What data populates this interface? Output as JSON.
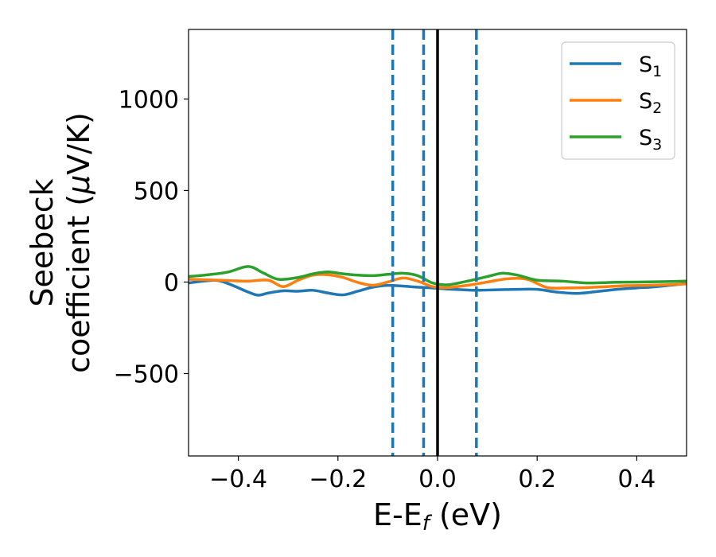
{
  "chart_data": {
    "type": "line",
    "xlabel": "E-E",
    "xlabel_sub": "f",
    "xlabel_unit": " (eV)",
    "ylabel_line1": "Seebeck",
    "ylabel_line2": "coefficient  (",
    "ylabel_mu": "μ",
    "ylabel_unit": "V/K)",
    "xlim": [
      -0.5,
      0.5
    ],
    "ylim": [
      -950,
      1380
    ],
    "xticks": [
      -0.4,
      -0.2,
      0.0,
      0.2,
      0.4
    ],
    "xtick_labels": [
      "−0.4",
      "−0.2",
      "0.0",
      "0.2",
      "0.4"
    ],
    "yticks": [
      -500,
      0,
      500,
      1000
    ],
    "ytick_labels": [
      "−500",
      "0",
      "500",
      "1000"
    ],
    "grid": false,
    "legend_position": "top-right",
    "vlines": [
      {
        "x": -0.09,
        "style": "dashed",
        "color": "#1f77b4"
      },
      {
        "x": -0.028,
        "style": "dashed",
        "color": "#1f77b4"
      },
      {
        "x": 0.0,
        "style": "solid",
        "color": "#000000"
      },
      {
        "x": 0.078,
        "style": "dashed",
        "color": "#1f77b4"
      }
    ],
    "series": [
      {
        "name": "S",
        "sub": "1",
        "color": "#1f77b4",
        "x": [
          -0.5,
          -0.47,
          -0.44,
          -0.41,
          -0.38,
          -0.36,
          -0.34,
          -0.31,
          -0.28,
          -0.25,
          -0.22,
          -0.19,
          -0.16,
          -0.13,
          -0.1,
          -0.07,
          -0.04,
          -0.01,
          0.02,
          0.05,
          0.08,
          0.12,
          0.16,
          0.2,
          0.24,
          0.28,
          0.32,
          0.36,
          0.4,
          0.44,
          0.5
        ],
        "y": [
          -5,
          5,
          8,
          -20,
          -55,
          -72,
          -60,
          -48,
          -50,
          -45,
          -60,
          -70,
          -50,
          -28,
          -18,
          -22,
          -28,
          -32,
          -38,
          -42,
          -45,
          -42,
          -40,
          -40,
          -55,
          -62,
          -52,
          -40,
          -32,
          -25,
          -8
        ]
      },
      {
        "name": "S",
        "sub": "2",
        "color": "#ff7f0e",
        "x": [
          -0.5,
          -0.46,
          -0.42,
          -0.38,
          -0.34,
          -0.31,
          -0.28,
          -0.25,
          -0.22,
          -0.19,
          -0.16,
          -0.13,
          -0.1,
          -0.07,
          -0.04,
          -0.01,
          0.02,
          0.06,
          0.1,
          0.14,
          0.18,
          0.22,
          0.26,
          0.3,
          0.34,
          0.38,
          0.42,
          0.46,
          0.5
        ],
        "y": [
          15,
          12,
          8,
          5,
          10,
          -25,
          10,
          38,
          40,
          25,
          -2,
          -18,
          0,
          22,
          5,
          -25,
          -30,
          -18,
          0,
          18,
          15,
          -30,
          -32,
          -30,
          -25,
          -20,
          -18,
          -15,
          -10
        ]
      },
      {
        "name": "S",
        "sub": "3",
        "color": "#2ca02c",
        "x": [
          -0.5,
          -0.46,
          -0.42,
          -0.38,
          -0.35,
          -0.32,
          -0.28,
          -0.25,
          -0.22,
          -0.19,
          -0.16,
          -0.13,
          -0.1,
          -0.07,
          -0.04,
          -0.01,
          0.02,
          0.06,
          0.1,
          0.13,
          0.16,
          0.2,
          0.25,
          0.3,
          0.35,
          0.4,
          0.45,
          0.5
        ],
        "y": [
          30,
          40,
          55,
          85,
          50,
          15,
          25,
          45,
          55,
          45,
          38,
          35,
          42,
          48,
          35,
          -5,
          -15,
          5,
          30,
          48,
          38,
          10,
          5,
          -5,
          -2,
          0,
          2,
          5
        ]
      }
    ]
  }
}
